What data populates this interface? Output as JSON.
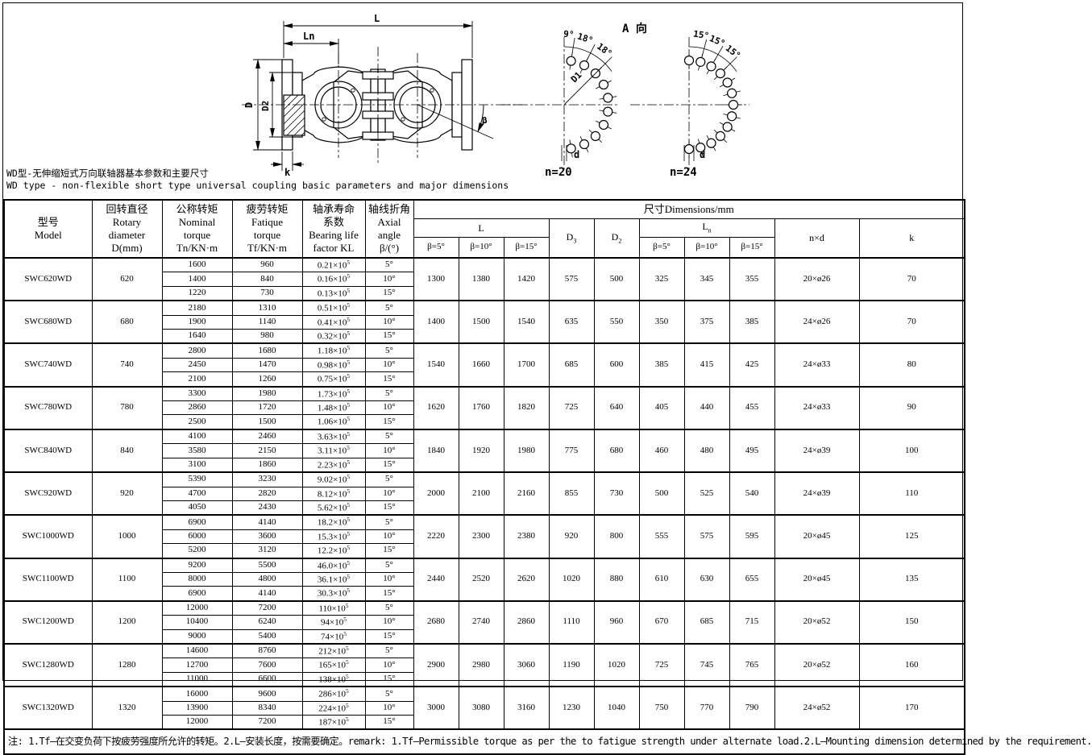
{
  "title": {
    "cn": "WD型-无伸缩短式万向联轴器基本参数和主要尺寸",
    "en": "WD type - non-flexible short type universal coupling basic parameters and major dimensions"
  },
  "drawing": {
    "dim_L": "L",
    "dim_Ln": "Ln",
    "dim_D": "D",
    "dim_D2": "D2",
    "dim_k": "k",
    "dim_beta": "β",
    "view_label": "A 向",
    "view_n20": {
      "label": "n=20",
      "angles": [
        "9°",
        "18°",
        "18°"
      ],
      "radius_label": "D1",
      "hole_label": "d"
    },
    "view_n24": {
      "label": "n=24",
      "angles": [
        "15°",
        "15°",
        "15°"
      ],
      "hole_label": "d"
    }
  },
  "table": {
    "headers": {
      "model": "型号\nModel",
      "rotary": "回转直径\nRotary\ndiameter\nD(mm)",
      "nominal": "公称转矩\nNominal\ntorque\nTn/KN·m",
      "fatigue": "疲劳转矩\nFatique\ntorque\nTf/KN·m",
      "bearing": "轴承寿命\n系数\nBearing life\nfactor  KL",
      "axial": "轴线折角\nAxial angle\nβ/(°)",
      "dims": "尺寸Dimensions/mm",
      "L": "L",
      "Ln": "L|n",
      "D3": "D|3",
      "D2": "D|2",
      "nd": "n×d",
      "k": "k",
      "betas": [
        "β=5°",
        "β=10°",
        "β=15°"
      ]
    },
    "rows": [
      {
        "model": "SWC620WD",
        "d": "620",
        "sub": [
          {
            "tn": "1600",
            "tf": "960",
            "kl": "0.21×10^5",
            "beta": "5°"
          },
          {
            "tn": "1400",
            "tf": "840",
            "kl": "0.16×10^5",
            "beta": "10°"
          },
          {
            "tn": "1220",
            "tf": "730",
            "kl": "0.13×10^5",
            "beta": "15°"
          }
        ],
        "L": [
          "1300",
          "1380",
          "1420"
        ],
        "D3": "575",
        "D2": "500",
        "Ln": [
          "325",
          "345",
          "355"
        ],
        "nd": "20×ø26",
        "k": "70"
      },
      {
        "model": "SWC680WD",
        "d": "680",
        "sub": [
          {
            "tn": "2180",
            "tf": "1310",
            "kl": "0.51×10^5",
            "beta": "5°"
          },
          {
            "tn": "1900",
            "tf": "1140",
            "kl": "0.41×10^5",
            "beta": "10°"
          },
          {
            "tn": "1640",
            "tf": "980",
            "kl": "0.32×10^5",
            "beta": "15°"
          }
        ],
        "L": [
          "1400",
          "1500",
          "1540"
        ],
        "D3": "635",
        "D2": "550",
        "Ln": [
          "350",
          "375",
          "385"
        ],
        "nd": "24×ø26",
        "k": "70"
      },
      {
        "model": "SWC740WD",
        "d": "740",
        "sub": [
          {
            "tn": "2800",
            "tf": "1680",
            "kl": "1.18×10^5",
            "beta": "5°"
          },
          {
            "tn": "2450",
            "tf": "1470",
            "kl": "0.98×10^5",
            "beta": "10°"
          },
          {
            "tn": "2100",
            "tf": "1260",
            "kl": "0.75×10^5",
            "beta": "15°"
          }
        ],
        "L": [
          "1540",
          "1660",
          "1700"
        ],
        "D3": "685",
        "D2": "600",
        "Ln": [
          "385",
          "415",
          "425"
        ],
        "nd": "24×ø33",
        "k": "80"
      },
      {
        "model": "SWC780WD",
        "d": "780",
        "sub": [
          {
            "tn": "3300",
            "tf": "1980",
            "kl": "1.73×10^5",
            "beta": "5°"
          },
          {
            "tn": "2860",
            "tf": "1720",
            "kl": "1.48×10^5",
            "beta": "10°"
          },
          {
            "tn": "2500",
            "tf": "1500",
            "kl": "1.06×10^5",
            "beta": "15°"
          }
        ],
        "L": [
          "1620",
          "1760",
          "1820"
        ],
        "D3": "725",
        "D2": "640",
        "Ln": [
          "405",
          "440",
          "455"
        ],
        "nd": "24×ø33",
        "k": "90"
      },
      {
        "model": "SWC840WD",
        "d": "840",
        "sub": [
          {
            "tn": "4100",
            "tf": "2460",
            "kl": "3.63×10^5",
            "beta": "5°"
          },
          {
            "tn": "3580",
            "tf": "2150",
            "kl": "3.11×10^5",
            "beta": "10°"
          },
          {
            "tn": "3100",
            "tf": "1860",
            "kl": "2.23×10^5",
            "beta": "15°"
          }
        ],
        "L": [
          "1840",
          "1920",
          "1980"
        ],
        "D3": "775",
        "D2": "680",
        "Ln": [
          "460",
          "480",
          "495"
        ],
        "nd": "24×ø39",
        "k": "100"
      },
      {
        "model": "SWC920WD",
        "d": "920",
        "sub": [
          {
            "tn": "5390",
            "tf": "3230",
            "kl": "9.02×10^5",
            "beta": "5°"
          },
          {
            "tn": "4700",
            "tf": "2820",
            "kl": "8.12×10^5",
            "beta": "10°"
          },
          {
            "tn": "4050",
            "tf": "2430",
            "kl": "5.62×10^5",
            "beta": "15°"
          }
        ],
        "L": [
          "2000",
          "2100",
          "2160"
        ],
        "D3": "855",
        "D2": "730",
        "Ln": [
          "500",
          "525",
          "540"
        ],
        "nd": "24×ø39",
        "k": "110"
      },
      {
        "model": "SWC1000WD",
        "d": "1000",
        "sub": [
          {
            "tn": "6900",
            "tf": "4140",
            "kl": "18.2×10^5",
            "beta": "5°"
          },
          {
            "tn": "6000",
            "tf": "3600",
            "kl": "15.3×10^5",
            "beta": "10°"
          },
          {
            "tn": "5200",
            "tf": "3120",
            "kl": "12.2×10^5",
            "beta": "15°"
          }
        ],
        "L": [
          "2220",
          "2300",
          "2380"
        ],
        "D3": "920",
        "D2": "800",
        "Ln": [
          "555",
          "575",
          "595"
        ],
        "nd": "20×ø45",
        "k": "125"
      },
      {
        "model": "SWC1100WD",
        "d": "1100",
        "sub": [
          {
            "tn": "9200",
            "tf": "5500",
            "kl": "46.0×10^5",
            "beta": "5°"
          },
          {
            "tn": "8000",
            "tf": "4800",
            "kl": "36.1×10^5",
            "beta": "10°"
          },
          {
            "tn": "6900",
            "tf": "4140",
            "kl": "30.3×10^5",
            "beta": "15°"
          }
        ],
        "L": [
          "2440",
          "2520",
          "2620"
        ],
        "D3": "1020",
        "D2": "880",
        "Ln": [
          "610",
          "630",
          "655"
        ],
        "nd": "20×ø45",
        "k": "135"
      },
      {
        "model": "SWC1200WD",
        "d": "1200",
        "sub": [
          {
            "tn": "12000",
            "tf": "7200",
            "kl": "110×10^5",
            "beta": "5°"
          },
          {
            "tn": "10400",
            "tf": "6240",
            "kl": "94×10^5",
            "beta": "10°"
          },
          {
            "tn": "9000",
            "tf": "5400",
            "kl": "74×10^5",
            "beta": "15°"
          }
        ],
        "L": [
          "2680",
          "2740",
          "2860"
        ],
        "D3": "1110",
        "D2": "960",
        "Ln": [
          "670",
          "685",
          "715"
        ],
        "nd": "20×ø52",
        "k": "150"
      },
      {
        "model": "SWC1280WD",
        "d": "1280",
        "sub": [
          {
            "tn": "14600",
            "tf": "8760",
            "kl": "212×10^5",
            "beta": "5°"
          },
          {
            "tn": "12700",
            "tf": "7600",
            "kl": "165×10^5",
            "beta": "10°"
          },
          {
            "tn": "11000",
            "tf": "6600",
            "kl": "138×10^5",
            "beta": "15°"
          }
        ],
        "L": [
          "2900",
          "2980",
          "3060"
        ],
        "D3": "1190",
        "D2": "1020",
        "Ln": [
          "725",
          "745",
          "765"
        ],
        "nd": "20×ø52",
        "k": "160"
      },
      {
        "model": "SWC1320WD",
        "d": "1320",
        "sub": [
          {
            "tn": "16000",
            "tf": "9600",
            "kl": "286×10^5",
            "beta": "5°"
          },
          {
            "tn": "13900",
            "tf": "8340",
            "kl": "224×10^5",
            "beta": "10°"
          },
          {
            "tn": "12000",
            "tf": "7200",
            "kl": "187×10^5",
            "beta": "15°"
          }
        ],
        "L": [
          "3000",
          "3080",
          "3160"
        ],
        "D3": "1230",
        "D2": "1040",
        "Ln": [
          "750",
          "770",
          "790"
        ],
        "nd": "24×ø52",
        "k": "170"
      }
    ],
    "note": "注: 1.Tf—在交变负荷下按疲劳强度所允许的转矩。2.L—安装长度，按需要确定。remark: 1.Tf—Permissible torque as per the to fatigue strength under alternate load.2.L—Mounting dimension determined by the requirement."
  }
}
